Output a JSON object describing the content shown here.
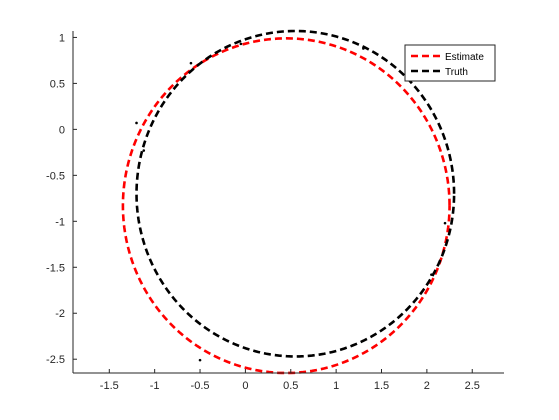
{
  "chart_data": {
    "type": "line",
    "title": "",
    "xlabel": "",
    "ylabel": "",
    "xlim": [
      -1.9,
      2.85
    ],
    "ylim": [
      -2.65,
      1.07
    ],
    "x_ticks": [
      -1.5,
      -1,
      -0.5,
      0,
      0.5,
      1,
      1.5,
      2,
      2.5
    ],
    "x_tick_labels": [
      "-1.5",
      "-1",
      "-0.5",
      "0",
      "0.5",
      "1",
      "1.5",
      "2",
      "2.5"
    ],
    "y_ticks": [
      1,
      0.5,
      0,
      -0.5,
      -1,
      -1.5,
      -2,
      -2.5
    ],
    "y_tick_labels": [
      "1",
      "0.5",
      "0",
      "-0.5",
      "-1",
      "-1.5",
      "-2",
      "-2.5"
    ],
    "grid": false,
    "legend_position": "top-right",
    "series": [
      {
        "name": "Estimate",
        "color": "#ff0000",
        "line_style": "dashed",
        "shape": "ellipse",
        "center": [
          0.45,
          -0.83
        ],
        "radius_x": 1.8,
        "radius_y": 1.82
      },
      {
        "name": "Truth",
        "color": "#000000",
        "line_style": "dashed",
        "shape": "ellipse",
        "center": [
          0.55,
          -0.7
        ],
        "radius_x": 1.75,
        "radius_y": 1.77
      }
    ],
    "scatter_points": {
      "color": "#000000",
      "points": [
        [
          -1.2,
          0.07
        ],
        [
          -1.12,
          -0.23
        ],
        [
          -0.5,
          -2.51
        ],
        [
          2.2,
          -1.02
        ],
        [
          2.05,
          -1.58
        ],
        [
          1.3,
          0.88
        ],
        [
          -0.05,
          0.93
        ],
        [
          -0.6,
          0.72
        ]
      ]
    }
  }
}
